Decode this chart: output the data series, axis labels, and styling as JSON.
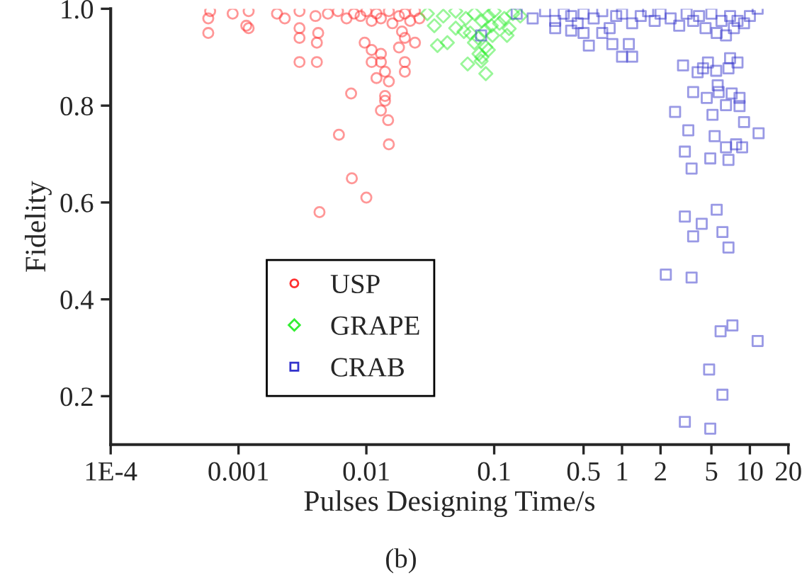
{
  "chart_data": {
    "type": "scatter",
    "xlabel": "Pulses Designing Time/s",
    "ylabel": "Fidelity",
    "annotations": [
      "(b)"
    ],
    "log": "x",
    "xlim": [
      0.0001,
      20
    ],
    "ylim": [
      0.1,
      1.0
    ],
    "xticks": [
      {
        "value": 0.0001,
        "label": "1E-4"
      },
      0.001,
      0.01,
      0.1,
      0.5,
      1,
      2,
      5,
      10,
      20
    ],
    "yticks": [
      0.2,
      0.4,
      0.6,
      0.8,
      {
        "value": 1.0,
        "label": "1.0"
      }
    ],
    "grid": false,
    "legend": "bottom left",
    "series": [
      {
        "name": "USP",
        "color": "#ff3030",
        "marker": "circle",
        "x": [
          0.0006,
          0.0009,
          0.0012,
          0.002,
          0.003,
          0.004,
          0.005,
          0.006,
          0.007,
          0.008,
          0.009,
          0.01,
          0.011,
          0.012,
          0.013,
          0.015,
          0.016,
          0.018,
          0.02,
          0.022,
          0.024,
          0.026,
          0.00058,
          0.00058,
          0.00115,
          0.0012,
          0.0023,
          0.003,
          0.003,
          0.0042,
          0.0041,
          0.0076,
          0.0061,
          0.0148,
          0.015,
          0.0077,
          0.01,
          0.0043,
          0.014,
          0.014,
          0.013,
          0.0097,
          0.011,
          0.011,
          0.013,
          0.013,
          0.014,
          0.012,
          0.015,
          0.02,
          0.02,
          0.018,
          0.024,
          0.02,
          0.019,
          0.003,
          0.0041
        ],
        "values": [
          0.995,
          0.99,
          0.995,
          0.99,
          0.995,
          0.985,
          0.99,
          0.995,
          0.98,
          0.99,
          0.985,
          0.995,
          0.975,
          0.99,
          0.98,
          0.995,
          0.97,
          0.985,
          0.99,
          0.975,
          0.995,
          0.98,
          0.98,
          0.95,
          0.965,
          0.96,
          0.98,
          0.96,
          0.94,
          0.95,
          0.89,
          0.825,
          0.74,
          0.77,
          0.72,
          0.65,
          0.61,
          0.58,
          0.82,
          0.81,
          0.79,
          0.93,
          0.915,
          0.89,
          0.907,
          0.89,
          0.87,
          0.857,
          0.85,
          0.87,
          0.89,
          0.92,
          0.93,
          0.94,
          0.953,
          0.89,
          0.93
        ]
      },
      {
        "name": "GRAPE",
        "color": "#33ee33",
        "marker": "diamond",
        "x": [
          0.034,
          0.036,
          0.043,
          0.058,
          0.062,
          0.086,
          0.079,
          0.076,
          0.086,
          0.097,
          0.126,
          0.131,
          0.03,
          0.04,
          0.05,
          0.06,
          0.07,
          0.08,
          0.09,
          0.1,
          0.11,
          0.12,
          0.14,
          0.16,
          0.05,
          0.065,
          0.075,
          0.085,
          0.095,
          0.07,
          0.09,
          0.08
        ],
        "values": [
          0.965,
          0.924,
          0.93,
          0.953,
          0.886,
          0.866,
          0.892,
          0.907,
          0.921,
          0.945,
          0.945,
          0.959,
          0.99,
          0.985,
          0.995,
          0.98,
          0.99,
          0.975,
          0.985,
          0.995,
          0.97,
          0.98,
          0.99,
          0.985,
          0.96,
          0.95,
          0.94,
          0.955,
          0.965,
          0.93,
          0.915,
          0.9
        ]
      },
      {
        "name": "CRAB",
        "color": "#3333cc",
        "marker": "square",
        "x": [
          3.0,
          3.9,
          4.3,
          4.7,
          5.45,
          6.8,
          7.0,
          8.0,
          5.6,
          3.6,
          4.6,
          5.7,
          7.2,
          8.3,
          8.3,
          6.5,
          2.6,
          5.1,
          9.0,
          11.7,
          3.3,
          5.3,
          3.1,
          6.5,
          7.8,
          8.7,
          4.9,
          6.8,
          3.5,
          3.1,
          5.5,
          4.2,
          6.1,
          3.6,
          6.8,
          2.2,
          3.5,
          5.9,
          7.3,
          11.5,
          4.8,
          6.1,
          3.1,
          4.9,
          0.55,
          1.0,
          1.2,
          0.84,
          1.13,
          0.15,
          0.2,
          0.25,
          0.3,
          0.35,
          0.4,
          0.45,
          0.5,
          0.6,
          0.7,
          0.8,
          0.9,
          1.0,
          1.2,
          1.4,
          1.6,
          1.8,
          2.0,
          2.4,
          2.8,
          3.2,
          3.6,
          4.0,
          4.5,
          5.0,
          5.5,
          6.0,
          6.5,
          7.0,
          7.5,
          8.0,
          9.0,
          10.0,
          11.5,
          0.5,
          0.4,
          0.7,
          0.3,
          0.079
        ],
        "values": [
          0.883,
          0.869,
          0.877,
          0.889,
          0.872,
          0.877,
          0.898,
          0.889,
          0.842,
          0.828,
          0.816,
          0.828,
          0.825,
          0.816,
          0.799,
          0.801,
          0.787,
          0.781,
          0.766,
          0.743,
          0.749,
          0.737,
          0.705,
          0.714,
          0.72,
          0.714,
          0.691,
          0.688,
          0.67,
          0.571,
          0.585,
          0.556,
          0.539,
          0.53,
          0.507,
          0.451,
          0.445,
          0.334,
          0.346,
          0.314,
          0.255,
          0.203,
          0.147,
          0.133,
          0.924,
          0.901,
          0.901,
          0.927,
          0.927,
          0.99,
          0.98,
          0.995,
          0.975,
          0.99,
          0.985,
          0.97,
          0.99,
          0.98,
          0.995,
          0.96,
          0.985,
          0.99,
          0.97,
          0.985,
          0.995,
          0.975,
          0.99,
          0.98,
          0.965,
          0.99,
          0.975,
          0.985,
          0.96,
          0.99,
          0.95,
          0.975,
          0.945,
          0.985,
          0.96,
          0.975,
          0.97,
          0.985,
          1.0,
          0.95,
          0.955,
          0.95,
          0.96,
          0.945
        ]
      }
    ]
  }
}
